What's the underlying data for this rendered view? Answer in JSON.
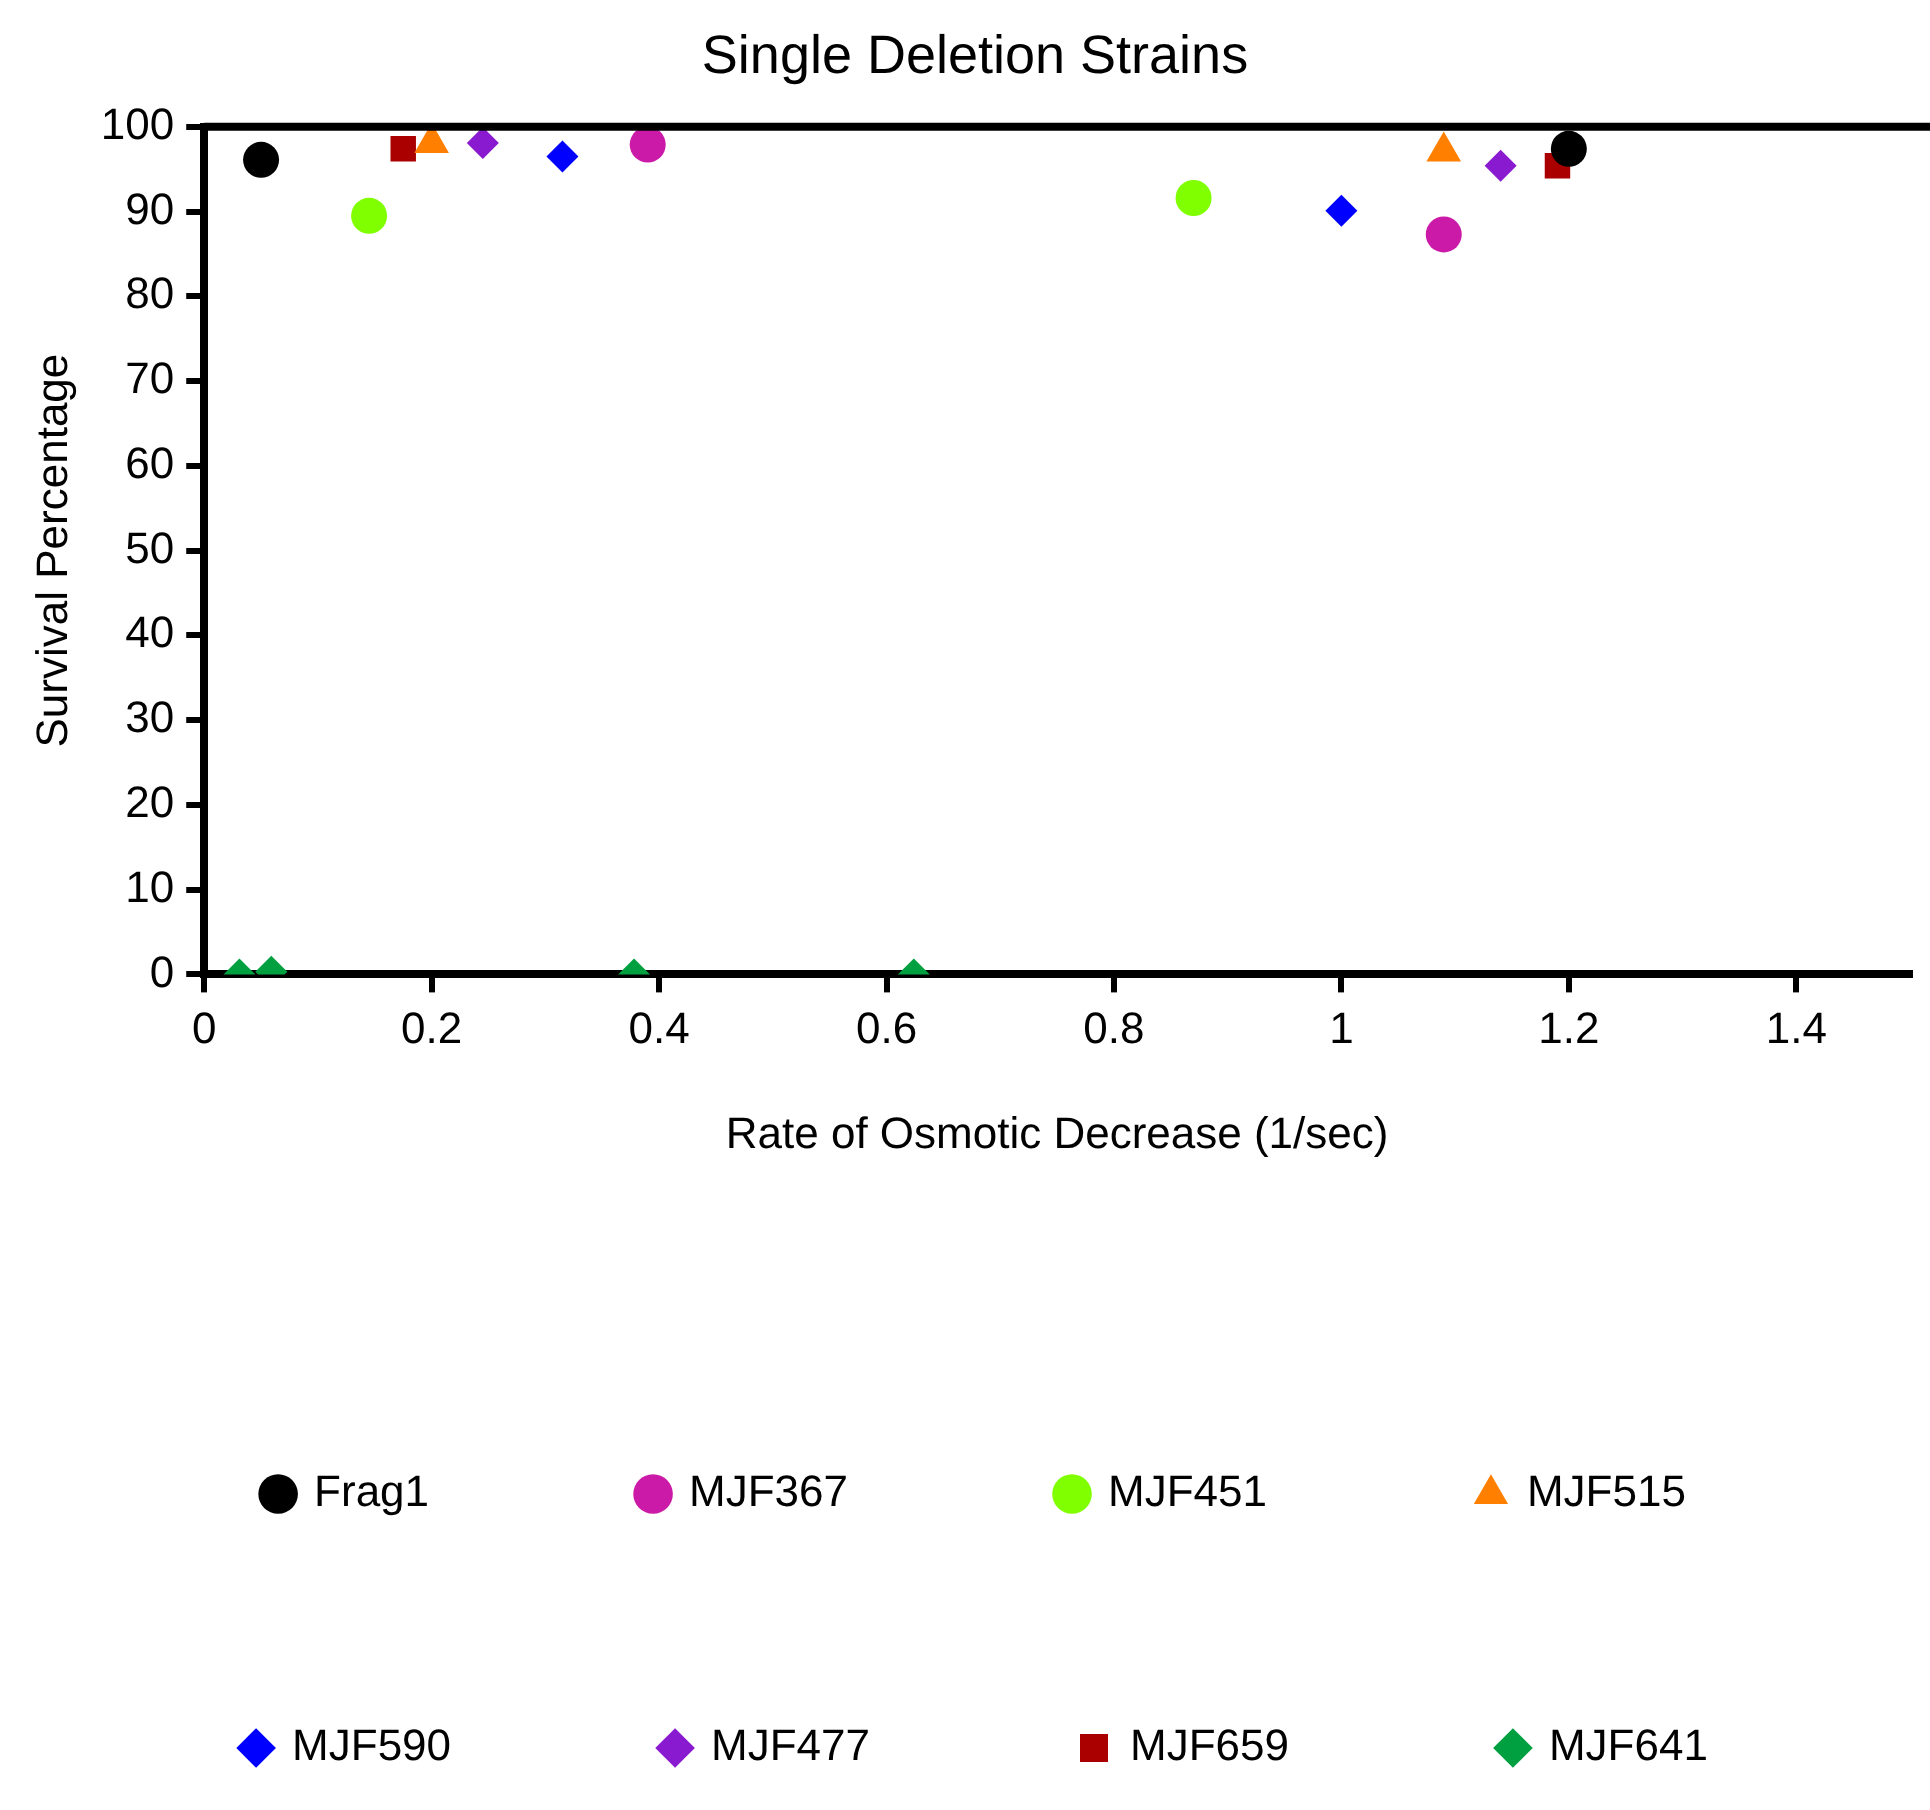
{
  "chart_data": {
    "type": "scatter",
    "title": "Single Deletion Strains",
    "xlabel": "Rate of Osmotic Decrease (1/sec)",
    "ylabel": "Survival Percentage",
    "xlim": [
      0,
      1.5
    ],
    "xticks": [
      0,
      0.2,
      0.4,
      0.6,
      0.8,
      1,
      1.2,
      1.4
    ],
    "ylim": [
      0,
      100
    ],
    "yticks": [
      0,
      10,
      20,
      30,
      40,
      50,
      60,
      70,
      80,
      90,
      100
    ],
    "grid": false,
    "legend": "bottom",
    "series": [
      {
        "name": "Frag1",
        "color": "#000000",
        "marker": "circle",
        "x": [
          0.05,
          1.2
        ],
        "values": [
          96.1,
          97.4
        ]
      },
      {
        "name": "MJF367",
        "color": "#cc1aa8",
        "marker": "circle",
        "x": [
          0.39,
          1.09
        ],
        "values": [
          97.9,
          87.3
        ]
      },
      {
        "name": "MJF451",
        "color": "#80ff00",
        "marker": "circle",
        "x": [
          0.145,
          0.87
        ],
        "values": [
          89.5,
          91.6
        ]
      },
      {
        "name": "MJF515",
        "color": "#ff7f00",
        "marker": "triangle",
        "x": [
          0.2,
          1.09
        ],
        "values": [
          98.1,
          97.1
        ]
      },
      {
        "name": "MJF590",
        "color": "#0000ff",
        "marker": "diamond",
        "x": [
          0.315,
          1.0
        ],
        "values": [
          96.5,
          90.1
        ]
      },
      {
        "name": "MJF477",
        "color": "#8a1ad0",
        "marker": "diamond",
        "x": [
          0.245,
          1.14
        ],
        "values": [
          98.1,
          95.4
        ]
      },
      {
        "name": "MJF659",
        "color": "#aa0000",
        "marker": "square",
        "x": [
          0.175,
          1.19
        ],
        "values": [
          97.4,
          95.4
        ]
      },
      {
        "name": "MJF641",
        "color": "#00a040",
        "marker": "diamond",
        "x": [
          0.031,
          0.059,
          0.378,
          0.624
        ],
        "values": [
          0,
          0.3,
          0,
          0
        ]
      }
    ]
  }
}
